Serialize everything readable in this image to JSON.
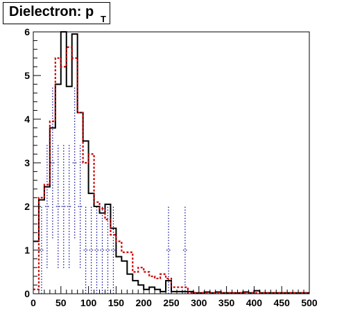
{
  "chart_data": {
    "type": "histogram",
    "title": "Dielectron: p",
    "title_subscript": "T",
    "xlabel": "",
    "ylabel": "",
    "xlim": [
      0,
      500
    ],
    "ylim": [
      0,
      6
    ],
    "x_ticks": [
      "0",
      "50",
      "100",
      "150",
      "200",
      "250",
      "300",
      "350",
      "400",
      "450",
      "500"
    ],
    "y_ticks": [
      "0",
      "1",
      "2",
      "3",
      "4",
      "5",
      "6"
    ],
    "grid": false,
    "bin_width": 10,
    "bin_starts": [
      0,
      10,
      20,
      30,
      40,
      50,
      60,
      70,
      80,
      90,
      100,
      110,
      120,
      130,
      140,
      150,
      160,
      170,
      180,
      190,
      200,
      210,
      220,
      230,
      240,
      250,
      260,
      270,
      280,
      290,
      300,
      310,
      320,
      330,
      340,
      350,
      360,
      370,
      380,
      390,
      400,
      410,
      420,
      430,
      440,
      450,
      460,
      470,
      480,
      490
    ],
    "series": [
      {
        "color": "#000000",
        "style": "solid-step",
        "values": [
          1.2,
          2.15,
          2.45,
          3.8,
          4.8,
          6.0,
          4.75,
          5.95,
          4.15,
          3.5,
          2.3,
          2.0,
          1.85,
          2.05,
          1.5,
          0.85,
          0.75,
          0.45,
          0.3,
          0.2,
          0.1,
          0.15,
          0.1,
          0.05,
          0.3,
          0.05,
          0.05,
          0.05,
          0.05,
          0.02,
          0.02,
          0.04,
          0.02,
          0.04,
          0.02,
          0.02,
          0.02,
          0.02,
          0.04,
          0.02,
          0.07,
          0.02,
          0.02,
          0.02,
          0.02,
          0.02,
          0.02,
          0.02,
          0.02,
          0.02
        ]
      },
      {
        "color": "#cc0000",
        "style": "dashed-step",
        "values": [
          0.1,
          2.2,
          2.5,
          3.95,
          5.4,
          5.2,
          5.65,
          5.4,
          4.15,
          3.0,
          3.2,
          2.1,
          1.95,
          1.7,
          1.35,
          1.2,
          0.95,
          0.95,
          0.5,
          0.6,
          0.5,
          0.4,
          0.35,
          0.45,
          0.35,
          0.15,
          0.15,
          0.15,
          0.02,
          0.02,
          0.02,
          0.02,
          0.02,
          0.02,
          0.02,
          0.02,
          0.02,
          0.02,
          0.02,
          0.02,
          0.02,
          0.02,
          0.02,
          0.02,
          0.02,
          0.02,
          0.02,
          0.02,
          0.02,
          0.02
        ]
      },
      {
        "color": "#000099",
        "style": "dotted-errorbar",
        "values": [
          0,
          1.0,
          2.0,
          3.0,
          2.0,
          2.0,
          2.0,
          3.0,
          2.0,
          1.0,
          1.0,
          1.0,
          1.0,
          1.0,
          1.0,
          0,
          0,
          0,
          0,
          0,
          0,
          0,
          0,
          0,
          1.0,
          0,
          0,
          1.0,
          0,
          0,
          0,
          0,
          0,
          0,
          0,
          0,
          0,
          0,
          0,
          0,
          0,
          0,
          0,
          0,
          0,
          0,
          0,
          0,
          0,
          0
        ],
        "errors": [
          0,
          1.0,
          1.41,
          1.73,
          1.41,
          1.41,
          1.41,
          1.73,
          1.41,
          1.0,
          1.0,
          1.0,
          1.0,
          1.0,
          1.0,
          0,
          0,
          0,
          0,
          0,
          0,
          0,
          0,
          0,
          1.0,
          0,
          0,
          1.0,
          0,
          0,
          0,
          0,
          0,
          0,
          0,
          0,
          0,
          0,
          0,
          0,
          0,
          0,
          0,
          0,
          0,
          0,
          0,
          0,
          0,
          0
        ]
      }
    ]
  }
}
